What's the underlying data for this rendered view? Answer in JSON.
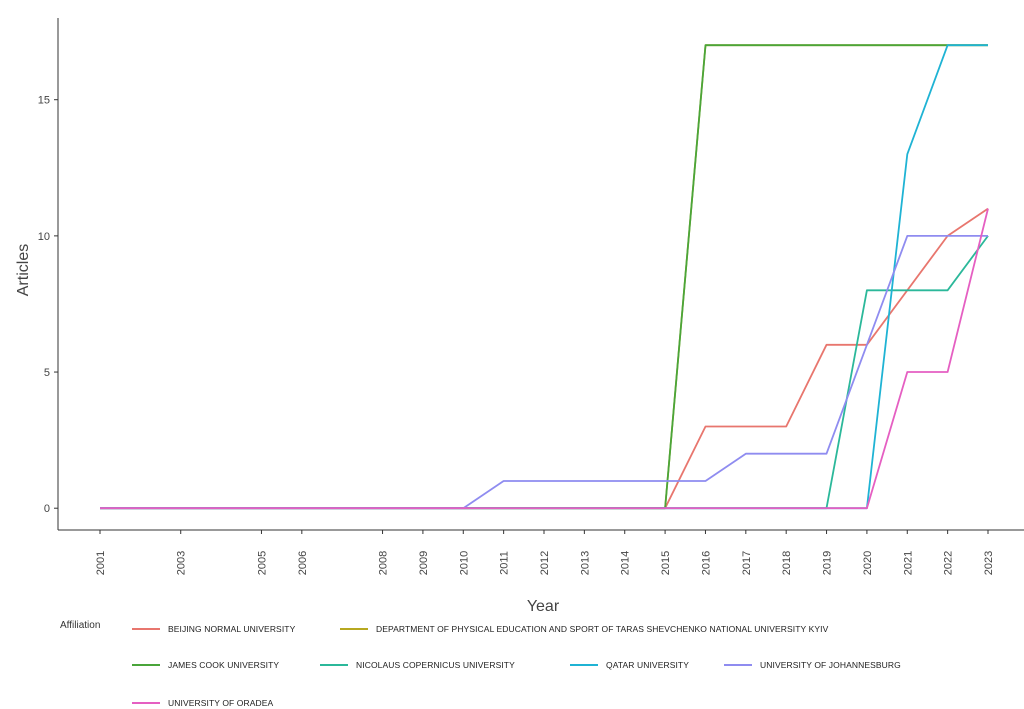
{
  "chart_data": {
    "type": "line",
    "title": "",
    "xlabel": "Year",
    "ylabel": "Articles",
    "x_ticks": [
      2001,
      2003,
      2005,
      2006,
      2008,
      2009,
      2010,
      2011,
      2012,
      2013,
      2014,
      2015,
      2016,
      2017,
      2018,
      2019,
      2020,
      2021,
      2022,
      2023
    ],
    "y_ticks": [
      0,
      5,
      10,
      15
    ],
    "ylim": [
      -0.8,
      18
    ],
    "grid": false,
    "legend_title": "Affiliation",
    "legend_position": "bottom",
    "series": [
      {
        "name": "BEIJING NORMAL UNIVERSITY",
        "color": "#e8766e",
        "x": [
          2001,
          2015,
          2016,
          2018,
          2019,
          2020,
          2022,
          2023
        ],
        "y": [
          0,
          0,
          3,
          3,
          6,
          6,
          10,
          11
        ]
      },
      {
        "name": "DEPARTMENT OF PHYSICAL EDUCATION AND SPORT OF TARAS SHEVCHENKO NATIONAL UNIVERSITY KYIV",
        "color": "#b7a820",
        "x": [
          2001,
          2015,
          2016,
          2023
        ],
        "y": [
          0,
          0,
          17,
          17
        ]
      },
      {
        "name": "JAMES COOK UNIVERSITY",
        "color": "#4aa53a",
        "x": [
          2001,
          2015,
          2016,
          2023
        ],
        "y": [
          0,
          0,
          17,
          17
        ]
      },
      {
        "name": "NICOLAUS COPERNICUS UNIVERSITY",
        "color": "#2bb89a",
        "x": [
          2001,
          2019,
          2020,
          2022,
          2023
        ],
        "y": [
          0,
          0,
          8,
          8,
          10
        ]
      },
      {
        "name": "QATAR UNIVERSITY",
        "color": "#1fb3d4",
        "x": [
          2001,
          2020,
          2021,
          2022,
          2023
        ],
        "y": [
          0,
          0,
          13,
          17,
          17
        ]
      },
      {
        "name": "UNIVERSITY OF JOHANNESBURG",
        "color": "#8f8cf0",
        "x": [
          2001,
          2010,
          2011,
          2016,
          2017,
          2019,
          2021,
          2023
        ],
        "y": [
          0,
          0,
          1,
          1,
          2,
          2,
          10,
          10
        ]
      },
      {
        "name": "UNIVERSITY OF ORADEA",
        "color": "#e55fc2",
        "x": [
          2001,
          2020,
          2021,
          2022,
          2023
        ],
        "y": [
          0,
          0,
          5,
          5,
          11
        ]
      }
    ]
  }
}
